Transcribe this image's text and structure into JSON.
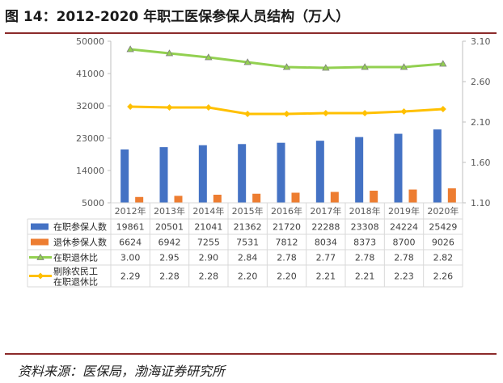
{
  "header": {
    "title": "图 14：2012-2020 年职工医保参保人员结构（万人）"
  },
  "footer": {
    "source": "资料来源：医保局，渤海证券研究所"
  },
  "colors": {
    "bar_active": "#4472c4",
    "bar_retired": "#ed7d31",
    "line_ratio": "#92d050",
    "line_ratio_marker": "#a5a5a5",
    "line_adjusted": "#ffc000",
    "rule": "#8b2a2a"
  },
  "chart_data": {
    "type": "bar",
    "categories": [
      "2012年",
      "2013年",
      "2014年",
      "2015年",
      "2016年",
      "2017年",
      "2018年",
      "2019年",
      "2020年"
    ],
    "y_left": {
      "ticks": [
        "5000",
        "14000",
        "23000",
        "32000",
        "41000",
        "50000"
      ],
      "ylim": [
        5000,
        50000
      ]
    },
    "y_right": {
      "ticks": [
        "1.10",
        "1.60",
        "2.10",
        "2.60",
        "3.10"
      ],
      "ylim": [
        1.1,
        3.1
      ]
    },
    "grid": false,
    "legend": "table-below",
    "series": [
      {
        "name": "在职参保人数",
        "kind": "bar",
        "axis": "left",
        "color": "#4472c4",
        "values": [
          19861,
          20501,
          21041,
          21362,
          21720,
          22288,
          23308,
          24224,
          25429
        ],
        "labels": [
          "19861",
          "20501",
          "21041",
          "21362",
          "21720",
          "22288",
          "23308",
          "24224",
          "25429"
        ]
      },
      {
        "name": "退休参保人数",
        "kind": "bar",
        "axis": "left",
        "color": "#ed7d31",
        "values": [
          6624,
          6942,
          7255,
          7531,
          7812,
          8034,
          8373,
          8700,
          9026
        ],
        "labels": [
          "6624",
          "6942",
          "7255",
          "7531",
          "7812",
          "8034",
          "8373",
          "8700",
          "9026"
        ]
      },
      {
        "name": "在职退休比",
        "kind": "line",
        "axis": "right",
        "color": "#92d050",
        "marker": "triangle",
        "values": [
          3.0,
          2.95,
          2.9,
          2.84,
          2.78,
          2.77,
          2.78,
          2.78,
          2.82
        ],
        "labels": [
          "3.00",
          "2.95",
          "2.90",
          "2.84",
          "2.78",
          "2.77",
          "2.78",
          "2.78",
          "2.82"
        ]
      },
      {
        "name": "剔除农民工 在职退休比",
        "name_lines": [
          "剔除农民工",
          "在职退休比"
        ],
        "kind": "line",
        "axis": "right",
        "color": "#ffc000",
        "marker": "diamond",
        "values": [
          2.29,
          2.28,
          2.28,
          2.2,
          2.2,
          2.21,
          2.21,
          2.23,
          2.26
        ],
        "labels": [
          "2.29",
          "2.28",
          "2.28",
          "2.20",
          "2.20",
          "2.21",
          "2.21",
          "2.23",
          "2.26"
        ]
      }
    ]
  }
}
